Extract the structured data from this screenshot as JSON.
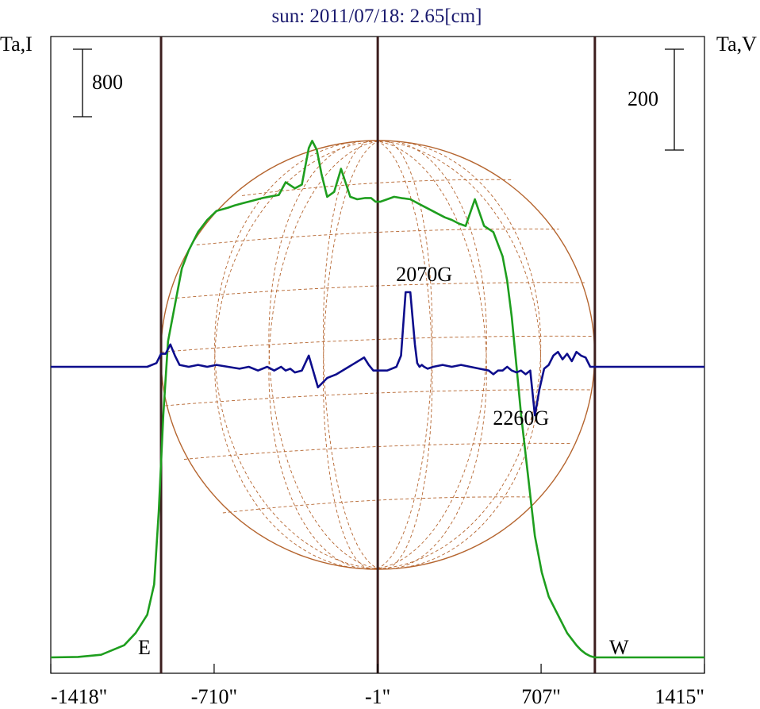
{
  "chart_data": {
    "type": "line",
    "title": "sun: 2011/07/18: 2.65[cm]",
    "ylabel_left": "Ta,I",
    "ylabel_right": "Ta,V",
    "scale_left": "800",
    "scale_right": "200",
    "x_ticks": [
      {
        "value": -1418,
        "label": "-1418\""
      },
      {
        "value": -710,
        "label": "-710\""
      },
      {
        "value": -1,
        "label": "-1\""
      },
      {
        "value": 707,
        "label": "707\""
      },
      {
        "value": 1415,
        "label": "1415\""
      }
    ],
    "xlim": [
      -1418,
      1415
    ],
    "limbs": [
      -940,
      -1,
      940
    ],
    "limb_labels": {
      "east": "E",
      "west": "W"
    },
    "annotations": [
      {
        "text": "2070G",
        "x": 200,
        "y": 2.3
      },
      {
        "text": "2260G",
        "x": 620,
        "y": -1.55
      }
    ],
    "colors": {
      "intensity": "#1e9e1e",
      "polarization": "#0d0d8c",
      "disk": "#b5652f",
      "limb_line": "#3c1e1e"
    },
    "series": [
      {
        "id": "intensity",
        "x": [
          -1418,
          -1300,
          -1200,
          -1100,
          -1050,
          -1000,
          -970,
          -950,
          -930,
          -910,
          -880,
          -850,
          -820,
          -780,
          -740,
          -700,
          -650,
          -620,
          -580,
          -540,
          -500,
          -470,
          -430,
          -400,
          -360,
          -330,
          -300,
          -285,
          -265,
          -245,
          -220,
          -190,
          -160,
          -120,
          -90,
          -55,
          -30,
          -10,
          10,
          40,
          70,
          100,
          140,
          180,
          200,
          230,
          260,
          290,
          320,
          350,
          380,
          420,
          460,
          500,
          540,
          560,
          580,
          600,
          620,
          650,
          680,
          710,
          740,
          780,
          820,
          860,
          880,
          900,
          920,
          940,
          970,
          1000,
          1050,
          1100,
          1200,
          1300,
          1415
        ],
        "y": [
          0,
          0.4,
          2.3,
          10.5,
          21.1,
          36.9,
          63.2,
          126.3,
          210.5,
          273.7,
          305.3,
          336.8,
          352.6,
          368.4,
          378.9,
          386.6,
          389.5,
          391.6,
          393.7,
          395.8,
          397.9,
          399.1,
          400.5,
          411.6,
          406.3,
          409.5,
          441.1,
          447.4,
          439.5,
          418.9,
          398.9,
          403.2,
          423.2,
          398.9,
          396.8,
          397.9,
          397.9,
          394.7,
          394.7,
          396.8,
          398.9,
          397.9,
          396.8,
          392.6,
          390.5,
          387.4,
          384.2,
          381.1,
          378.9,
          375.8,
          373.7,
          396.8,
          373.7,
          368.4,
          347.4,
          326.3,
          294.7,
          252.6,
          210.5,
          157.9,
          105.3,
          73.7,
          52.6,
          36.8,
          21.1,
          10.5,
          6.3,
          3.2,
          1.1,
          0,
          0,
          0,
          0,
          0,
          0,
          0,
          0
        ]
      },
      {
        "id": "polarization",
        "x": [
          -1418,
          -1000,
          -960,
          -940,
          -920,
          -900,
          -880,
          -860,
          -820,
          -780,
          -740,
          -700,
          -650,
          -600,
          -560,
          -520,
          -480,
          -450,
          -420,
          -400,
          -380,
          -360,
          -330,
          -300,
          -260,
          -220,
          -180,
          -140,
          -100,
          -60,
          -40,
          -20,
          0,
          40,
          80,
          100,
          120,
          140,
          160,
          170,
          180,
          190,
          200,
          215,
          240,
          280,
          320,
          360,
          400,
          440,
          480,
          500,
          520,
          540,
          560,
          580,
          600,
          620,
          640,
          660,
          680,
          700,
          720,
          740,
          760,
          780,
          800,
          820,
          840,
          860,
          880,
          900,
          920,
          940,
          960,
          980,
          1000,
          1050,
          1100,
          1200,
          1300,
          1415
        ],
        "y": [
          0,
          0,
          0.1,
          0.35,
          0.35,
          0.6,
          0.3,
          0.05,
          0.0,
          0.05,
          0.0,
          0.05,
          0.0,
          -0.05,
          0.0,
          -0.1,
          0.0,
          -0.1,
          0.0,
          -0.1,
          -0.05,
          -0.15,
          -0.1,
          0.3,
          -0.55,
          -0.3,
          -0.2,
          -0.05,
          0.1,
          0.25,
          0.05,
          -0.1,
          -0.1,
          -0.1,
          0.0,
          0.3,
          2.0,
          2.0,
          0.6,
          0.1,
          0.0,
          0.05,
          0.0,
          -0.05,
          0.0,
          0.05,
          0.0,
          0.05,
          0.0,
          -0.05,
          -0.1,
          -0.2,
          -0.1,
          -0.1,
          0.0,
          -0.1,
          -0.15,
          -0.1,
          -0.2,
          -0.1,
          -1.3,
          -0.6,
          -0.05,
          0.05,
          0.3,
          0.4,
          0.2,
          0.35,
          0.15,
          0.4,
          0.3,
          0.25,
          0.0,
          0.0,
          0.0,
          0.0,
          0.0,
          0.0,
          0.0,
          0.0,
          0.0,
          0.0
        ]
      }
    ]
  }
}
